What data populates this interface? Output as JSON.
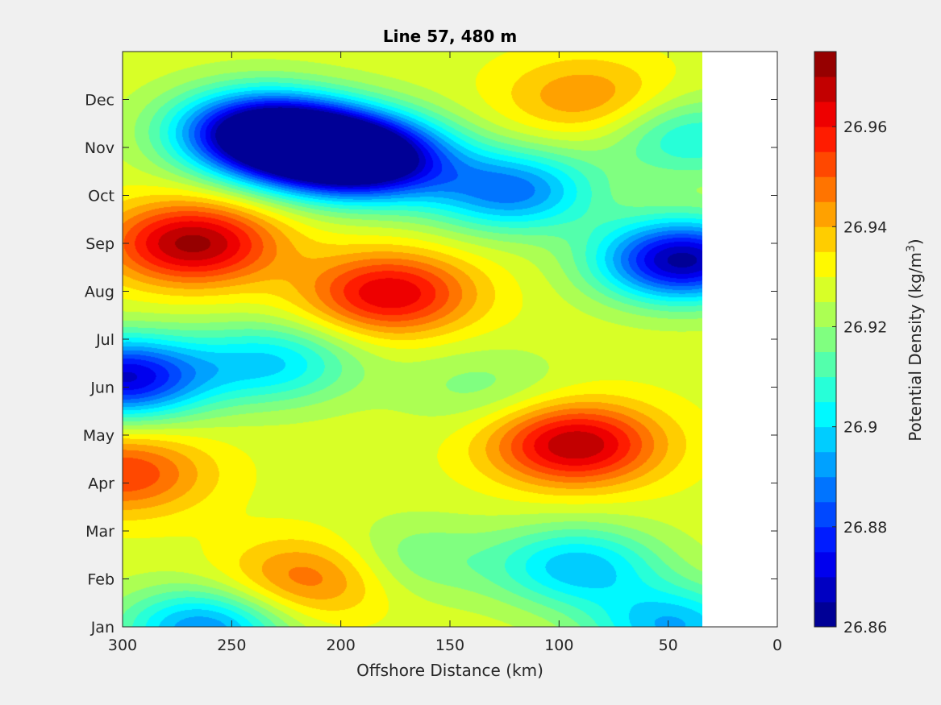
{
  "chart_data": {
    "type": "heatmap",
    "subtype": "filled-contour",
    "title": "Line 57, 480 m",
    "xlabel": "Offshore Distance (km)",
    "colorbar_label_base": "Potential Density (kg/m",
    "colorbar_label_sup": "3",
    "colorbar_label_end": ")",
    "x_ticks": [
      "300",
      "250",
      "200",
      "150",
      "100",
      "50",
      "0"
    ],
    "x_tick_values": [
      300,
      250,
      200,
      150,
      100,
      50,
      0
    ],
    "x_range": [
      300,
      0
    ],
    "x_reversed": true,
    "y_ticks": [
      "Jan",
      "Feb",
      "Mar",
      "Apr",
      "May",
      "Jun",
      "Jul",
      "Aug",
      "Sep",
      "Oct",
      "Nov",
      "Dec"
    ],
    "y_tick_values": [
      0,
      1,
      2,
      3,
      4,
      5,
      6,
      7,
      8,
      9,
      10,
      11
    ],
    "y_range": [
      0,
      12
    ],
    "data_x_extent": [
      300,
      35
    ],
    "colorbar_ticks": [
      "26.86",
      "26.88",
      "26.9",
      "26.92",
      "26.94",
      "26.96"
    ],
    "colorbar_tick_values": [
      26.86,
      26.88,
      26.9,
      26.92,
      26.94,
      26.96
    ],
    "clim": [
      26.86,
      26.975
    ],
    "contour_step": 0.005,
    "colormap": "jet",
    "features": [
      {
        "x": 212,
        "month": 10.0,
        "value": 26.862
      },
      {
        "x": 240,
        "month": 10.35,
        "value": 26.868
      },
      {
        "x": 185,
        "month": 9.75,
        "value": 26.87
      },
      {
        "x": 44,
        "month": 7.65,
        "value": 26.863
      },
      {
        "x": 300,
        "month": 5.2,
        "value": 26.87
      },
      {
        "x": 122,
        "month": 9.1,
        "value": 26.888
      },
      {
        "x": 263,
        "month": -0.05,
        "value": 26.89
      },
      {
        "x": 48,
        "month": 0.0,
        "value": 26.895
      },
      {
        "x": 268,
        "month": 8.0,
        "value": 26.972
      },
      {
        "x": 178,
        "month": 6.95,
        "value": 26.965
      },
      {
        "x": 93,
        "month": 3.8,
        "value": 26.97
      },
      {
        "x": 300,
        "month": 3.2,
        "value": 26.955
      },
      {
        "x": 88,
        "month": 11.05,
        "value": 26.945
      },
      {
        "x": 232,
        "month": 5.5,
        "value": 26.9
      },
      {
        "x": 92,
        "month": 1.25,
        "value": 26.897
      },
      {
        "x": 168,
        "month": 1.4,
        "value": 26.915
      },
      {
        "x": 136,
        "month": 5.0,
        "value": 26.918
      },
      {
        "x": 215,
        "month": 1.0,
        "value": 26.95
      },
      {
        "x": 40,
        "month": 10.2,
        "value": 26.905
      }
    ],
    "background_value": 26.928
  }
}
